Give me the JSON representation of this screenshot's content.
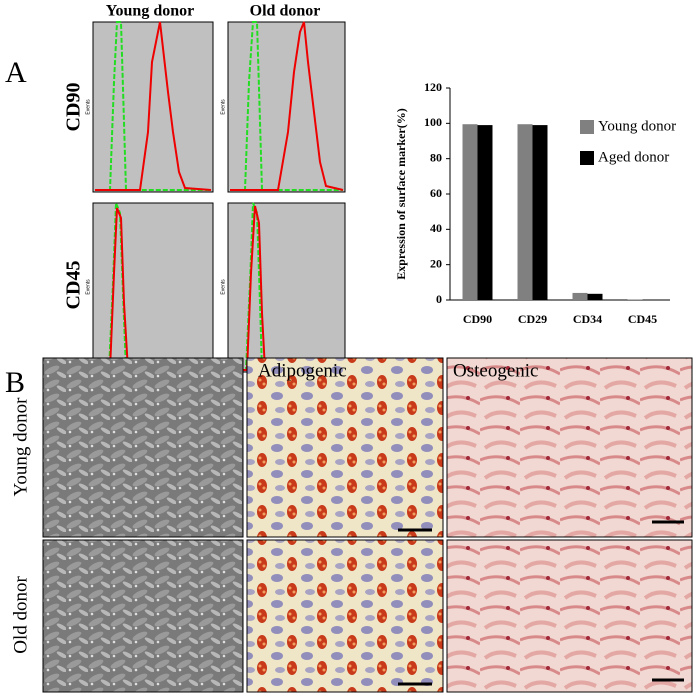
{
  "panels": {
    "a_label": "A",
    "b_label": "B"
  },
  "flow": {
    "col_headers": [
      "Young donor",
      "Old donor"
    ],
    "row_labels": [
      "CD90",
      "CD45"
    ],
    "axis_label": "Events"
  },
  "images": {
    "row_labels": [
      "Young donor",
      "Old donor"
    ],
    "col_labels": [
      "Adipogenic",
      "Osteogenic"
    ]
  },
  "chart_data": {
    "type": "bar",
    "y_label": "Expression of surface marker(%)",
    "categories": [
      "CD90",
      "CD29",
      "CD34",
      "CD45"
    ],
    "series": [
      {
        "name": "Young donor",
        "color": "#808080",
        "values": [
          99.5,
          99.5,
          4,
          0.3
        ]
      },
      {
        "name": "Aged donor",
        "color": "#000000",
        "values": [
          99,
          99,
          3.5,
          0.2
        ]
      }
    ],
    "ylim": [
      0,
      120
    ],
    "yticks": [
      0,
      20,
      40,
      60,
      80,
      100,
      120
    ]
  }
}
